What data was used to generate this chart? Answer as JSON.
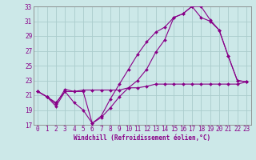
{
  "xlabel": "Windchill (Refroidissement éolien,°C)",
  "background_color": "#cce8e8",
  "grid_color": "#aacccc",
  "line_color": "#880088",
  "xlim_min": -0.5,
  "xlim_max": 23.5,
  "ylim_min": 17,
  "ylim_max": 33,
  "xticks": [
    0,
    1,
    2,
    3,
    4,
    5,
    6,
    7,
    8,
    9,
    10,
    11,
    12,
    13,
    14,
    15,
    16,
    17,
    18,
    19,
    20,
    21,
    22,
    23
  ],
  "yticks": [
    17,
    19,
    21,
    23,
    25,
    27,
    29,
    31,
    33
  ],
  "series": [
    [
      21.5,
      20.8,
      20.0,
      21.5,
      21.5,
      21.5,
      17.2,
      18.0,
      19.3,
      20.8,
      22.0,
      23.0,
      24.5,
      26.8,
      28.5,
      31.5,
      32.0,
      33.0,
      33.0,
      31.2,
      29.8,
      26.3,
      23.0,
      22.8
    ],
    [
      21.5,
      20.8,
      19.8,
      21.8,
      21.5,
      21.7,
      21.7,
      21.7,
      21.7,
      21.7,
      22.0,
      22.0,
      22.2,
      22.5,
      22.5,
      22.5,
      22.5,
      22.5,
      22.5,
      22.5,
      22.5,
      22.5,
      22.5,
      22.8
    ],
    [
      21.5,
      20.8,
      19.5,
      21.5,
      20.0,
      19.0,
      17.2,
      18.2,
      20.5,
      22.5,
      24.5,
      26.5,
      28.2,
      29.5,
      30.2,
      31.5,
      32.0,
      33.0,
      31.5,
      31.0,
      29.8,
      26.3,
      23.0,
      22.8
    ]
  ],
  "tick_fontsize": 5.5,
  "xlabel_fontsize": 5.5,
  "tick_color": "#880088",
  "spine_color": "#888888",
  "linewidth": 0.8,
  "markersize": 2.0
}
